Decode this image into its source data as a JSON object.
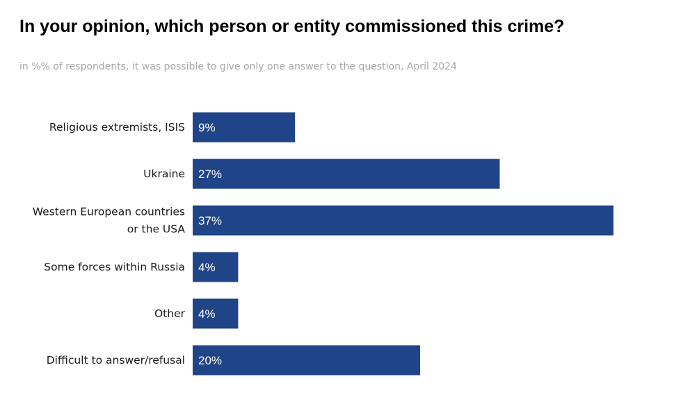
{
  "chart_data": {
    "type": "bar",
    "orientation": "horizontal",
    "title": "In your opinion, which person or entity commissioned this crime?",
    "subtitle": "in %% of respondents, it was possible to give only one answer to the question, April 2024",
    "categories": [
      [
        "Religious extremists, ISIS"
      ],
      [
        "Ukraine"
      ],
      [
        "Western European countries",
        "or the USA"
      ],
      [
        "Some forces within Russia"
      ],
      [
        "Other"
      ],
      [
        "Difficult to answer/refusal"
      ]
    ],
    "values": [
      9,
      27,
      37,
      4,
      4,
      20
    ],
    "value_labels": [
      "9%",
      "27%",
      "37%",
      "4%",
      "4%",
      "20%"
    ],
    "unit": "%",
    "bar_color": "#1f4487",
    "label_color": "#ffffff",
    "grid": false,
    "legend": "none"
  }
}
